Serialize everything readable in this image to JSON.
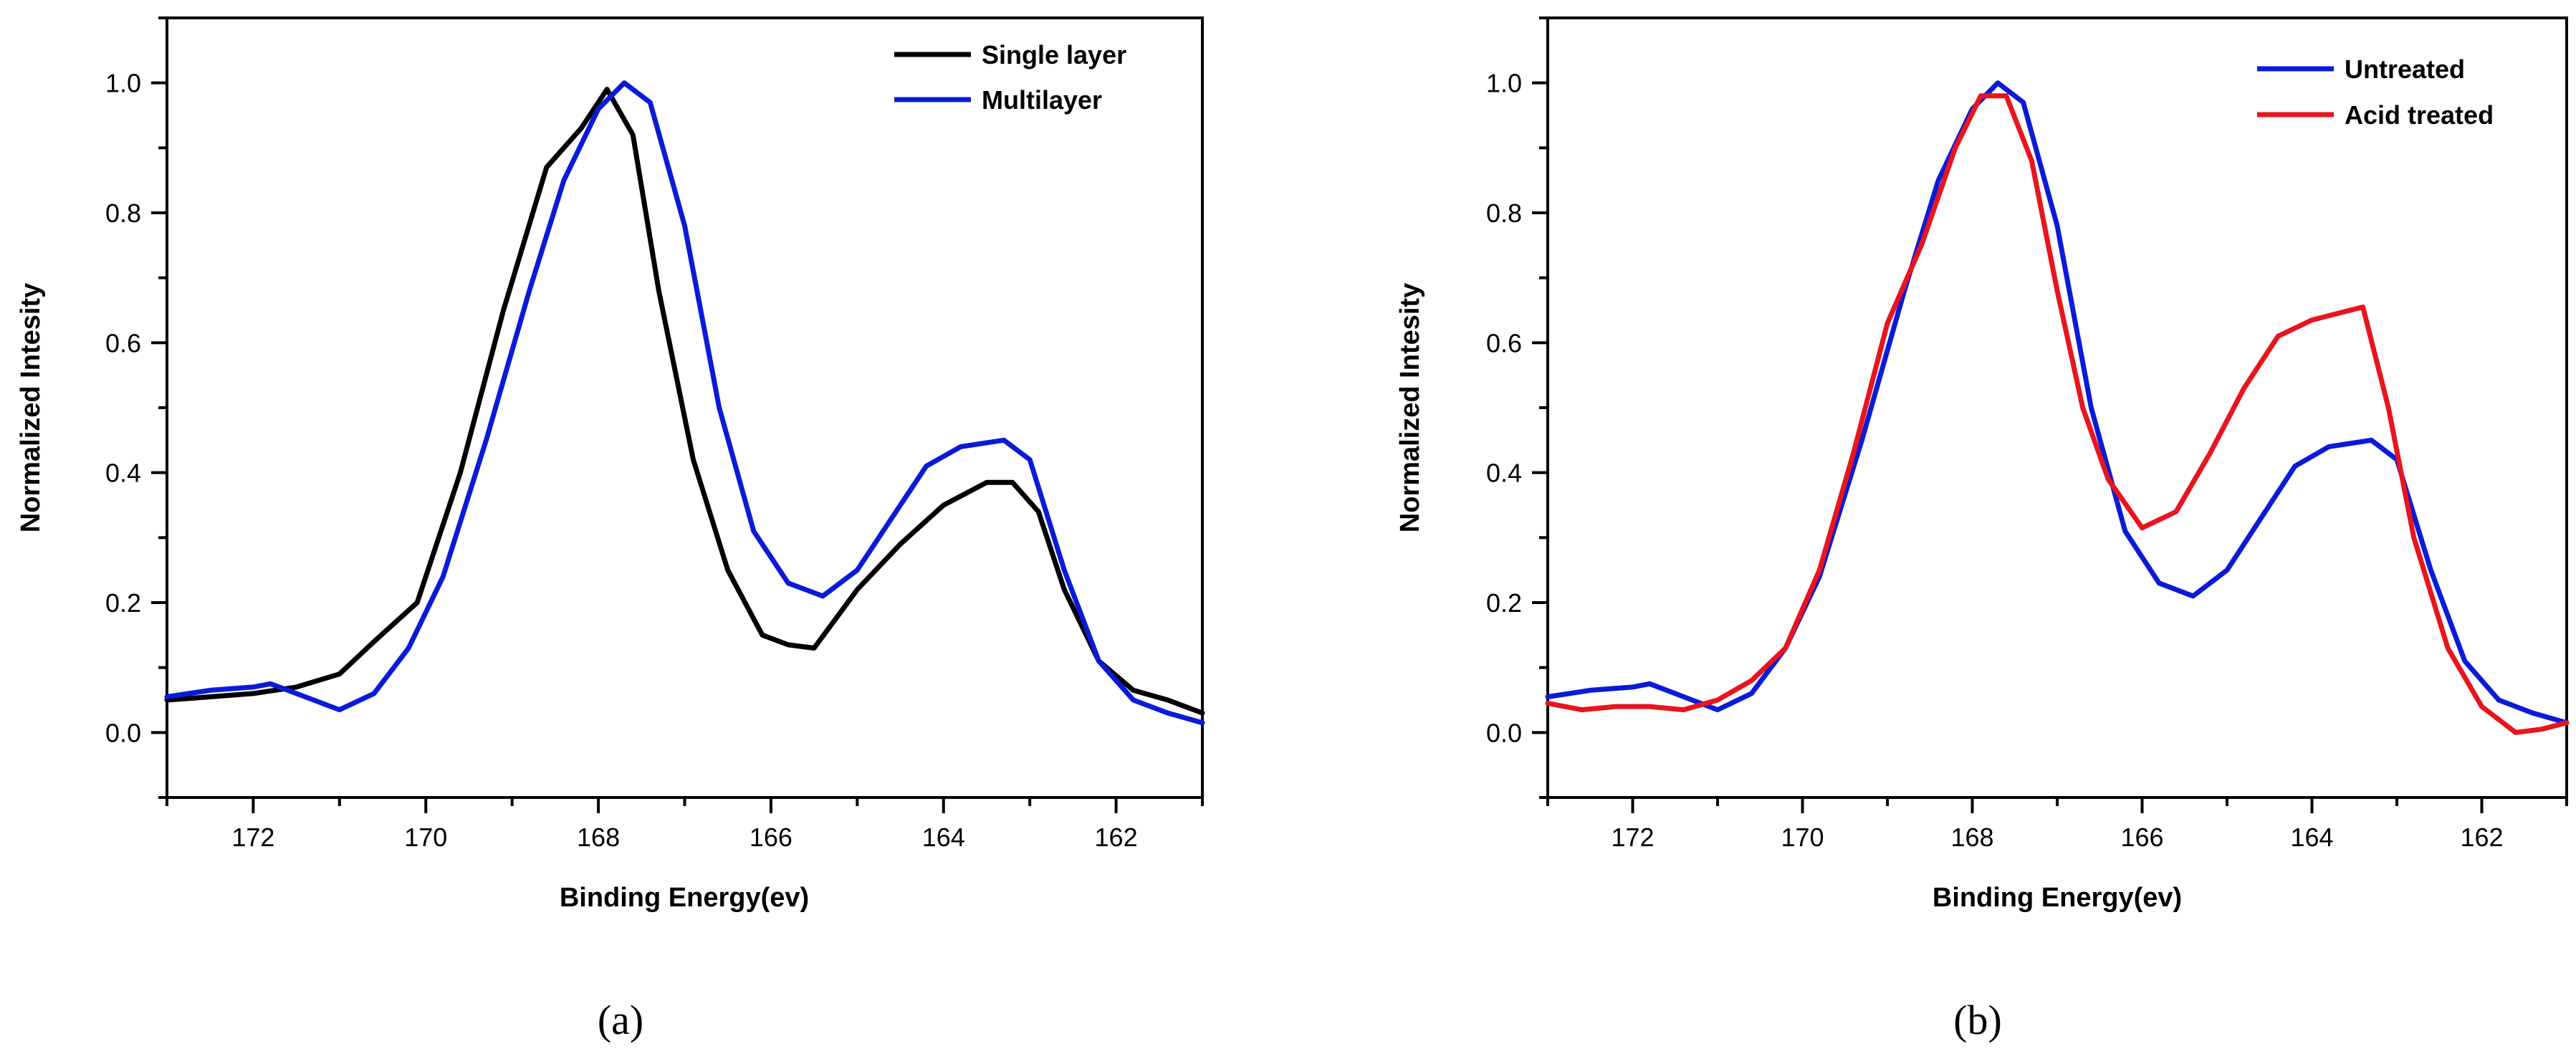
{
  "chart_data": [
    {
      "type": "line",
      "panel_label": "(a)",
      "xlabel": "Binding Energy(ev)",
      "ylabel": "Normalized Intesity",
      "xlim": [
        173,
        161
      ],
      "ylim": [
        -0.1,
        1.1
      ],
      "xticks": [
        172,
        170,
        168,
        166,
        164,
        162
      ],
      "yticks": [
        0.0,
        0.2,
        0.4,
        0.6,
        0.8,
        1.0
      ],
      "ytick_labels": [
        "0.0",
        "0.2",
        "0.4",
        "0.6",
        "0.8",
        "1.0"
      ],
      "legend_position": "top-right",
      "series": [
        {
          "name": "Single layer",
          "color": "#000000",
          "x": [
            173,
            172.5,
            172,
            171.5,
            171,
            170.6,
            170.1,
            169.6,
            169.1,
            168.6,
            168.2,
            167.9,
            167.6,
            167.3,
            166.9,
            166.5,
            166.1,
            165.8,
            165.5,
            165.0,
            164.5,
            164.0,
            163.5,
            163.2,
            162.9,
            162.6,
            162.2,
            161.8,
            161.4,
            161
          ],
          "y": [
            0.05,
            0.055,
            0.06,
            0.07,
            0.09,
            0.14,
            0.2,
            0.4,
            0.65,
            0.87,
            0.93,
            0.99,
            0.92,
            0.68,
            0.42,
            0.25,
            0.15,
            0.135,
            0.13,
            0.22,
            0.29,
            0.35,
            0.385,
            0.385,
            0.34,
            0.22,
            0.11,
            0.065,
            0.05,
            0.03
          ]
        },
        {
          "name": "Multilayer",
          "color": "#0a1bd8",
          "x": [
            173,
            172.5,
            172,
            171.8,
            171.5,
            171,
            170.6,
            170.2,
            169.8,
            169.3,
            168.8,
            168.4,
            168.0,
            167.7,
            167.4,
            167.0,
            166.6,
            166.2,
            165.8,
            165.4,
            165.0,
            164.6,
            164.2,
            163.8,
            163.3,
            163.0,
            162.6,
            162.2,
            161.8,
            161.4,
            161
          ],
          "y": [
            0.055,
            0.065,
            0.07,
            0.075,
            0.06,
            0.035,
            0.06,
            0.13,
            0.24,
            0.45,
            0.68,
            0.85,
            0.96,
            1.0,
            0.97,
            0.78,
            0.5,
            0.31,
            0.23,
            0.21,
            0.25,
            0.33,
            0.41,
            0.44,
            0.45,
            0.42,
            0.25,
            0.11,
            0.05,
            0.03,
            0.015
          ]
        }
      ]
    },
    {
      "type": "line",
      "panel_label": "(b)",
      "xlabel": "Binding Energy(ev)",
      "ylabel": "Normalized Intesity",
      "xlim": [
        173,
        161
      ],
      "ylim": [
        -0.1,
        1.1
      ],
      "xticks": [
        172,
        170,
        168,
        166,
        164,
        162
      ],
      "yticks": [
        0.0,
        0.2,
        0.4,
        0.6,
        0.8,
        1.0
      ],
      "ytick_labels": [
        "0.0",
        "0.2",
        "0.4",
        "0.6",
        "0.8",
        "1.0"
      ],
      "legend_position": "top-right",
      "series": [
        {
          "name": "Untreated",
          "color": "#0a1bd8",
          "x": [
            173,
            172.5,
            172,
            171.8,
            171.5,
            171,
            170.6,
            170.2,
            169.8,
            169.3,
            168.8,
            168.4,
            168.0,
            167.7,
            167.4,
            167.0,
            166.6,
            166.2,
            165.8,
            165.4,
            165.0,
            164.6,
            164.2,
            163.8,
            163.3,
            163.0,
            162.6,
            162.2,
            161.8,
            161.4,
            161
          ],
          "y": [
            0.055,
            0.065,
            0.07,
            0.075,
            0.06,
            0.035,
            0.06,
            0.13,
            0.24,
            0.45,
            0.68,
            0.85,
            0.96,
            1.0,
            0.97,
            0.78,
            0.5,
            0.31,
            0.23,
            0.21,
            0.25,
            0.33,
            0.41,
            0.44,
            0.45,
            0.42,
            0.25,
            0.11,
            0.05,
            0.03,
            0.015
          ]
        },
        {
          "name": "Acid treated",
          "color": "#e8141e",
          "x": [
            173,
            172.6,
            172.2,
            171.8,
            171.4,
            171.0,
            170.6,
            170.2,
            169.8,
            169.4,
            169.0,
            168.6,
            168.2,
            167.9,
            167.6,
            167.3,
            167.0,
            166.7,
            166.4,
            166.0,
            165.6,
            165.2,
            164.8,
            164.4,
            164.0,
            163.7,
            163.4,
            163.1,
            162.8,
            162.4,
            162.0,
            161.6,
            161.3,
            161
          ],
          "y": [
            0.045,
            0.035,
            0.04,
            0.04,
            0.035,
            0.05,
            0.08,
            0.13,
            0.25,
            0.43,
            0.63,
            0.75,
            0.9,
            0.98,
            0.98,
            0.88,
            0.68,
            0.5,
            0.39,
            0.315,
            0.34,
            0.43,
            0.53,
            0.61,
            0.635,
            0.645,
            0.655,
            0.5,
            0.3,
            0.13,
            0.04,
            0.0,
            0.005,
            0.015
          ]
        }
      ]
    }
  ]
}
